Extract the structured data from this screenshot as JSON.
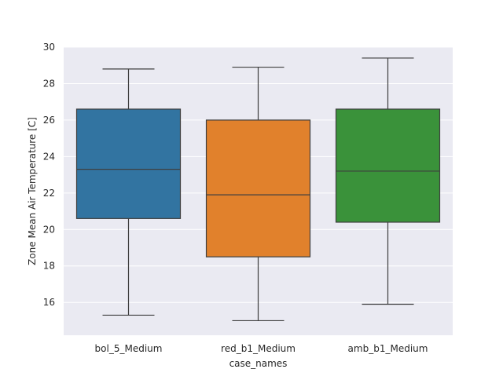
{
  "chart_data": {
    "type": "box",
    "xlabel": "case_names",
    "ylabel": "Zone Mean Air Temperature [C]",
    "ylim": [
      14.2,
      30
    ],
    "yticks": [
      16,
      18,
      20,
      22,
      24,
      26,
      28,
      30
    ],
    "grid": true,
    "categories": [
      "bol_5_Medium",
      "red_b1_Medium",
      "amb_b1_Medium"
    ],
    "boxes": [
      {
        "category": "bol_5_Medium",
        "whisker_low": 15.3,
        "q1": 20.6,
        "median": 23.3,
        "q3": 26.6,
        "whisker_high": 28.8,
        "color": "#3274a1"
      },
      {
        "category": "red_b1_Medium",
        "whisker_low": 15.0,
        "q1": 18.5,
        "median": 21.9,
        "q3": 26.0,
        "whisker_high": 28.9,
        "color": "#e1812c"
      },
      {
        "category": "amb_b1_Medium",
        "whisker_low": 15.9,
        "q1": 20.4,
        "median": 23.2,
        "q3": 26.6,
        "whisker_high": 29.4,
        "color": "#3a923a"
      }
    ],
    "colors": {
      "plot_background": "#eaeaf2",
      "grid": "#ffffff",
      "box_edge": "#3f3f3f"
    }
  }
}
